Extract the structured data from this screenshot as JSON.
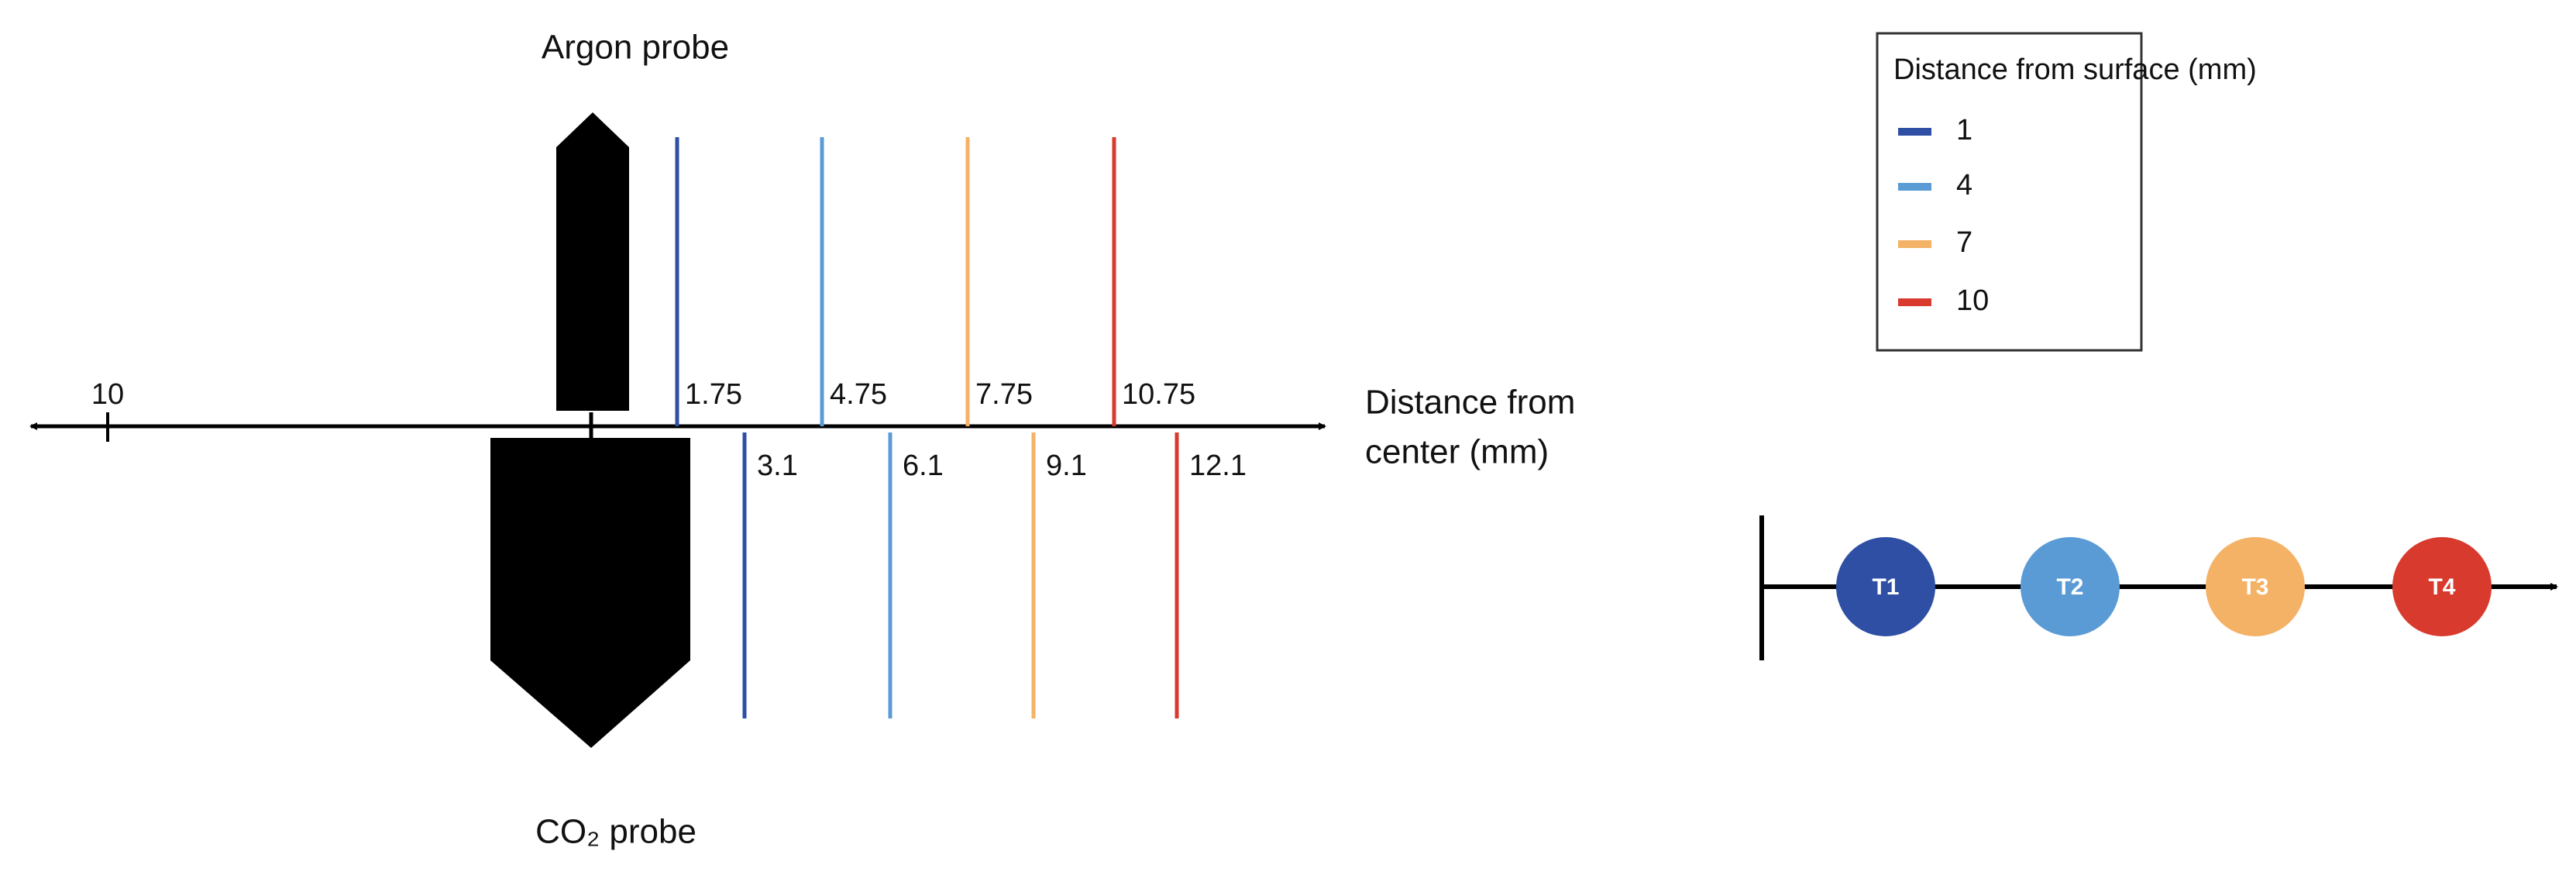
{
  "probes": {
    "top": "Argon probe",
    "bottom": "CO₂ probe"
  },
  "axis": {
    "label_lines": [
      "Distance from",
      "center (mm)"
    ],
    "tick": "10"
  },
  "positions": {
    "top": [
      "1.75",
      "4.75",
      "7.75",
      "10.75"
    ],
    "bottom": [
      "3.1",
      "6.1",
      "9.1",
      "12.1"
    ]
  },
  "legend": {
    "title": "Distance from surface (mm)",
    "entries": [
      {
        "label": "1",
        "color": "#2e4fa3"
      },
      {
        "label": "4",
        "color": "#5b9bd5"
      },
      {
        "label": "7",
        "color": "#f4b266"
      },
      {
        "label": "10",
        "color": "#d83a2e"
      }
    ]
  },
  "timeline": {
    "nodes": [
      "T1",
      "T2",
      "T3",
      "T4"
    ]
  }
}
